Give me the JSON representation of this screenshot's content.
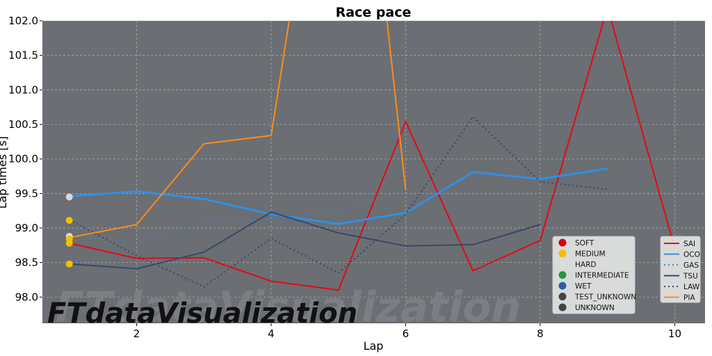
{
  "chart_data": {
    "type": "line",
    "title": "Race pace",
    "xlabel": "Lap",
    "ylabel": "Lap times [s]",
    "xlim": [
      0.6,
      10.45
    ],
    "ylim": [
      97.62,
      102.0
    ],
    "xticks": [
      2,
      4,
      6,
      8,
      10
    ],
    "yticks": [
      98.0,
      98.5,
      99.0,
      99.5,
      100.0,
      100.5,
      101.0,
      101.5,
      102.0
    ],
    "ytick_labels": [
      "98.0",
      "98.5",
      "99.0",
      "99.5",
      "100.0",
      "100.5",
      "101.0",
      "101.5",
      "102.0"
    ],
    "grid": true,
    "watermark": "FTdataVisualization",
    "series": [
      {
        "name": "SAI",
        "color": "#e50914",
        "style": "solid",
        "width": 2,
        "x": [
          1,
          2,
          3,
          4,
          5,
          6,
          7,
          8,
          9,
          10
        ],
        "y": [
          98.78,
          98.56,
          98.57,
          98.23,
          98.1,
          100.54,
          98.38,
          98.82,
          102.2,
          98.7
        ]
      },
      {
        "name": "OCO",
        "color": "#2f8fe6",
        "style": "solid",
        "width": 3,
        "x": [
          1,
          2,
          3,
          4,
          5,
          6,
          7,
          8,
          9
        ],
        "y": [
          99.46,
          99.53,
          99.42,
          99.2,
          99.06,
          99.22,
          99.81,
          99.71,
          99.86
        ]
      },
      {
        "name": "GAS",
        "color": "#2f8fe6",
        "style": "dotted",
        "width": 1,
        "x": [
          1,
          2,
          3,
          4,
          5,
          6
        ],
        "y": [
          98.88,
          98.8,
          99.08,
          99.13,
          99.24,
          99.55
        ]
      },
      {
        "name": "TSU",
        "color": "#34496a",
        "style": "solid",
        "width": 2,
        "x": [
          1,
          2,
          3,
          4,
          5,
          6,
          7,
          8
        ],
        "y": [
          98.48,
          98.41,
          98.65,
          99.23,
          98.93,
          98.74,
          98.76,
          99.05
        ]
      },
      {
        "name": "LAW",
        "color": "#34496a",
        "style": "dotted",
        "width": 2,
        "x": [
          1,
          2,
          3,
          4,
          5,
          6,
          7,
          8,
          9
        ],
        "y": [
          99.12,
          98.6,
          98.15,
          98.85,
          98.35,
          99.2,
          100.61,
          99.67,
          99.56
        ]
      },
      {
        "name": "PIA",
        "color": "#ff8c14",
        "style": "solid",
        "width": 2,
        "x": [
          1,
          2,
          3,
          4,
          4.3,
          5.7,
          6
        ],
        "y": [
          98.86,
          99.05,
          100.22,
          100.34,
          102.2,
          102.2,
          99.55
        ]
      }
    ],
    "tyre_markers": [
      {
        "x": 1,
        "y": 99.45,
        "compound": "HARD",
        "color": "#d9d9d9"
      },
      {
        "x": 1,
        "y": 99.11,
        "compound": "MEDIUM",
        "color": "#f5c000"
      },
      {
        "x": 1,
        "y": 98.88,
        "compound": "HARD",
        "color": "#d9d9d9"
      },
      {
        "x": 1,
        "y": 98.84,
        "compound": "MEDIUM",
        "color": "#f5c000"
      },
      {
        "x": 1,
        "y": 98.78,
        "compound": "MEDIUM",
        "color": "#f5c000"
      },
      {
        "x": 1,
        "y": 98.48,
        "compound": "MEDIUM",
        "color": "#f5c000"
      }
    ],
    "compound_legend": {
      "placement": "lower-right",
      "items": [
        {
          "label": "SOFT",
          "color": "#d40000"
        },
        {
          "label": "MEDIUM",
          "color": "#f5c000"
        },
        {
          "label": "HARD",
          "color": "#dcdcdc"
        },
        {
          "label": "INTERMEDIATE",
          "color": "#1f9a3c"
        },
        {
          "label": "WET",
          "color": "#2f5ea8"
        },
        {
          "label": "TEST_UNKNOWN",
          "color": "#434343"
        },
        {
          "label": "UNKNOWN",
          "color": "#434343"
        }
      ]
    },
    "driver_legend": {
      "placement": "lower-right",
      "items": [
        {
          "label": "SAI",
          "color": "#e50914",
          "style": "solid"
        },
        {
          "label": "OCO",
          "color": "#2f8fe6",
          "style": "solid"
        },
        {
          "label": "GAS",
          "color": "#2f8fe6",
          "style": "dotted"
        },
        {
          "label": "TSU",
          "color": "#34496a",
          "style": "solid"
        },
        {
          "label": "LAW",
          "color": "#34496a",
          "style": "dotted"
        },
        {
          "label": "PIA",
          "color": "#ff8c14",
          "style": "solid"
        }
      ]
    },
    "colors": {
      "plot_background": "#6b6e73",
      "grid": "#a9abae"
    }
  }
}
